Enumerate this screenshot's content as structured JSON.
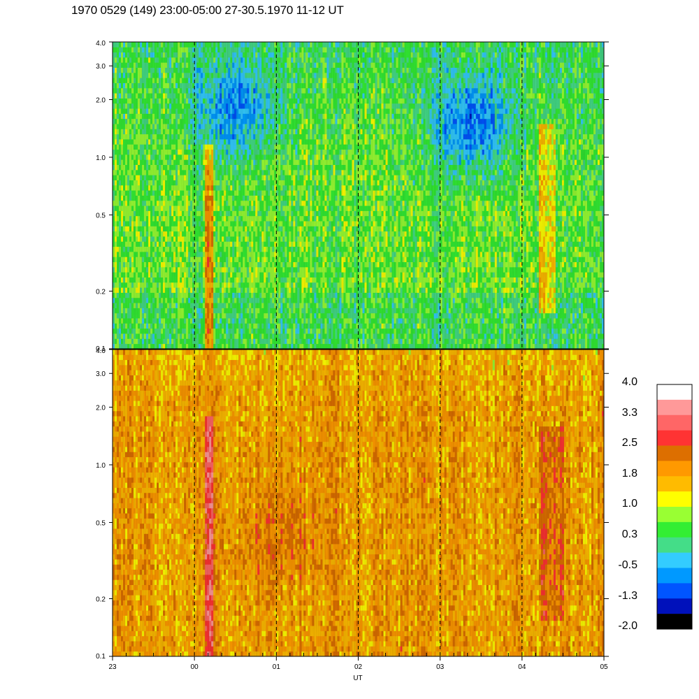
{
  "title": "1970 0529 (149) 23:00-05:00 27-30.5.1970  11-12 UT",
  "chart_data": {
    "type": "heatmap",
    "xlabel": "UT",
    "x_ticks": [
      "23",
      "00",
      "01",
      "02",
      "03",
      "04",
      "05"
    ],
    "x_range_hours": [
      23,
      29
    ],
    "y_scale": "log",
    "y_ticks": [
      "0.1",
      "0.2",
      "0.5",
      "1.0",
      "2.0",
      "3.0",
      "4.0"
    ],
    "y_tick_values": [
      0.1,
      0.2,
      0.5,
      1.0,
      2.0,
      3.0,
      4.0
    ],
    "ylim": [
      0.1,
      4.0
    ],
    "dashed_vertical_lines_hours": [
      24,
      25,
      26,
      27,
      28
    ],
    "panels": [
      {
        "name": "upper",
        "base_level": 0.6,
        "features": [
          {
            "type": "vertical_band",
            "x_start": 24.12,
            "x_end": 24.22,
            "y_min": 0.1,
            "y_max": 1.2,
            "level": 2.0
          },
          {
            "type": "vertical_band",
            "x_start": 28.2,
            "x_end": 28.4,
            "y_min": 0.15,
            "y_max": 1.5,
            "level": 1.4
          },
          {
            "type": "patch",
            "x_center": 24.5,
            "y_center": 1.8,
            "level": -0.7
          },
          {
            "type": "patch",
            "x_center": 27.4,
            "y_center": 1.5,
            "level": -0.9
          }
        ]
      },
      {
        "name": "lower",
        "base_level": 1.8,
        "features": [
          {
            "type": "vertical_band",
            "x_start": 24.12,
            "x_end": 24.22,
            "y_min": 0.1,
            "y_max": 1.8,
            "level": 2.8
          },
          {
            "type": "vertical_band",
            "x_start": 28.2,
            "x_end": 28.5,
            "y_min": 0.15,
            "y_max": 1.6,
            "level": 2.3
          },
          {
            "type": "patch",
            "x_center": 25.0,
            "y_center": 0.45,
            "level": 2.2
          }
        ]
      }
    ],
    "colorbar": {
      "labels": [
        "4.0",
        "3.3",
        "2.5",
        "1.8",
        "1.0",
        "0.3",
        "-0.5",
        "-1.3",
        "-2.0"
      ],
      "label_values": [
        4.0,
        3.3,
        2.5,
        1.8,
        1.0,
        0.3,
        -0.5,
        -1.3,
        -2.0
      ],
      "colors_top_to_bottom": [
        "#ffffff",
        "#ff9999",
        "#ff6666",
        "#ff3333",
        "#dd6f00",
        "#ff9900",
        "#ffbb00",
        "#ffff00",
        "#99ff33",
        "#33ee33",
        "#44dd88",
        "#33ccff",
        "#0099ff",
        "#0055ff",
        "#0011bb",
        "#000000"
      ]
    }
  }
}
